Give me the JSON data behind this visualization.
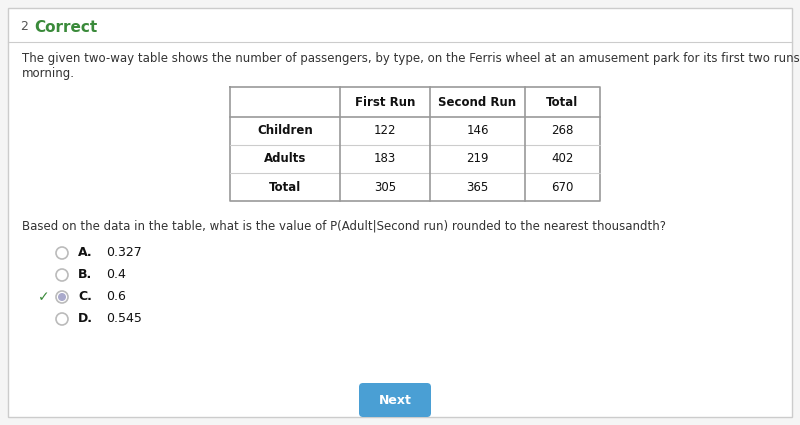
{
  "question_number": "2",
  "header_label": "Correct",
  "header_color": "#3a8a3a",
  "description_line1": "The given two-way table shows the number of passengers, by type, on the Ferris wheel at an amusement park for its first two runs on a Sunday",
  "description_line2": "morning.",
  "table_col_headers": [
    "",
    "First Run",
    "Second Run",
    "Total"
  ],
  "table_rows": [
    [
      "Children",
      "122",
      "146",
      "268"
    ],
    [
      "Adults",
      "183",
      "219",
      "402"
    ],
    [
      "Total",
      "305",
      "365",
      "670"
    ]
  ],
  "question_text": "Based on the data in the table, what is the value of P(Adult|Second run) rounded to the nearest thousandth?",
  "choices": [
    {
      "label": "A.",
      "value": "0.327",
      "correct": false
    },
    {
      "label": "B.",
      "value": "0.4",
      "correct": false
    },
    {
      "label": "C.",
      "value": "0.6",
      "correct": true
    },
    {
      "label": "D.",
      "value": "0.545",
      "correct": false
    }
  ],
  "next_button_text": "Next",
  "next_button_color": "#4a9fd4",
  "background_color": "#f5f5f5",
  "card_color": "#ffffff",
  "border_color": "#cccccc",
  "correct_check_color": "#3a8a3a",
  "radio_color_empty": "#bbbbbb",
  "radio_color_selected": "#aaaacc",
  "table_border_color": "#999999",
  "table_inner_color": "#cccccc",
  "text_color": "#333333",
  "text_dark": "#111111"
}
